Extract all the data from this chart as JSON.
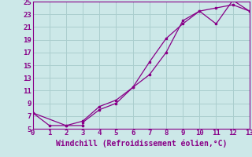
{
  "xlabel": "Windchill (Refroidissement éolien,°C)",
  "xlim": [
    0,
    13
  ],
  "ylim": [
    5,
    25
  ],
  "xticks": [
    0,
    1,
    2,
    3,
    4,
    5,
    6,
    7,
    8,
    9,
    10,
    11,
    12,
    13
  ],
  "yticks": [
    5,
    7,
    9,
    11,
    13,
    15,
    17,
    19,
    21,
    23,
    25
  ],
  "background_color": "#cce8e8",
  "grid_color": "#aacece",
  "line_color": "#880088",
  "series1_x": [
    0,
    1,
    2,
    3,
    3,
    4,
    5,
    6,
    7,
    8,
    9,
    10,
    11,
    12,
    13
  ],
  "series1_y": [
    7.5,
    5.5,
    5.5,
    5.5,
    6.0,
    8.0,
    9.0,
    11.5,
    15.5,
    19.2,
    21.5,
    23.5,
    24.0,
    24.5,
    23.5
  ],
  "series2_x": [
    0,
    2,
    3,
    4,
    5,
    6,
    7,
    8,
    9,
    10,
    11,
    12,
    13
  ],
  "series2_y": [
    7.5,
    5.5,
    6.2,
    8.5,
    9.5,
    11.5,
    13.5,
    17.0,
    22.0,
    23.5,
    21.5,
    25.2,
    23.5
  ],
  "font_family": "monospace",
  "xlabel_fontsize": 7,
  "tick_fontsize": 6.5
}
